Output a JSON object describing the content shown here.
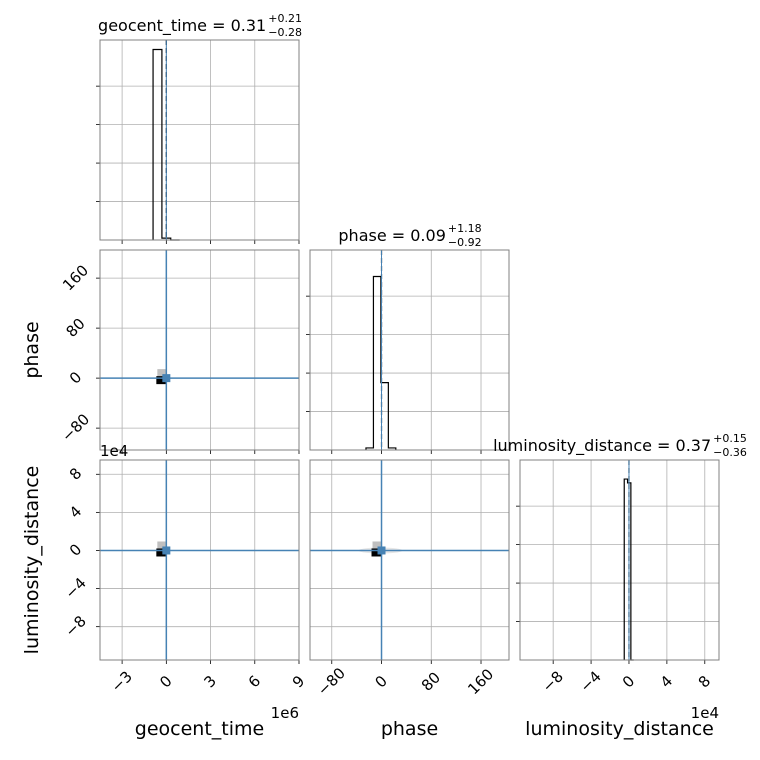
{
  "chart_data": {
    "type": "corner",
    "parameters": [
      "geocent_time",
      "phase",
      "luminosity_distance"
    ],
    "diagonal_titles": [
      {
        "param": "geocent_time",
        "prefix": "geocent_time = ",
        "median": "0.31",
        "upper": "+0.21",
        "lower": "−0.28"
      },
      {
        "param": "phase",
        "prefix": "phase = ",
        "median": "0.09",
        "upper": "+1.18",
        "lower": "−0.92"
      },
      {
        "param": "luminosity_distance",
        "prefix": "luminosity_distance = ",
        "median": "0.37",
        "upper": "+0.15",
        "lower": "−0.36"
      }
    ],
    "axes": {
      "geocent_time": {
        "label": "geocent_time",
        "range": [
          -4.5,
          9
        ],
        "offset_text": "1e6",
        "ticks": [
          -3,
          0,
          3,
          6,
          9
        ],
        "tick_labels": [
          "−3",
          "0",
          "3",
          "6",
          "9"
        ]
      },
      "phase": {
        "label": "phase",
        "range": [
          -115,
          205
        ],
        "offset_text": "",
        "ticks": [
          -80,
          0,
          80,
          160
        ],
        "tick_labels": [
          "−80",
          "0",
          "80",
          "160"
        ]
      },
      "luminosity_distance": {
        "label": "luminosity_distance",
        "range": [
          -11.5,
          9.5
        ],
        "offset_text": "1e4",
        "ticks": [
          -8,
          -4,
          0,
          4,
          8
        ],
        "tick_labels": [
          "−8",
          "−4",
          "0",
          "4",
          "8"
        ]
      }
    },
    "truths": {
      "geocent_time": 0,
      "phase": 0,
      "luminosity_distance": 0
    },
    "medians": {
      "geocent_time": 0.0,
      "phase": 0,
      "luminosity_distance": 0.0
    },
    "histograms": {
      "geocent_time": {
        "edges": [
          -0.9,
          -0.3,
          0.3,
          0.9
        ],
        "heights": [
          1.0,
          0.01,
          0.0
        ],
        "ymax": 1.05
      },
      "phase": {
        "edges": [
          -25,
          -13,
          -1,
          11,
          23
        ],
        "heights": [
          0.01,
          0.85,
          0.33,
          0.01
        ],
        "ymax": 0.98
      },
      "luminosity_distance": {
        "edges": [
          -0.5,
          -0.15,
          0.2,
          0.5
        ],
        "heights": [
          0.95,
          0.93,
          0.0
        ],
        "ymax": 1.05
      }
    },
    "grid": true,
    "truth_color": "#4682b4",
    "hist_color": "#000000",
    "density_colors": [
      "#000000",
      "#bfbfbf"
    ]
  }
}
